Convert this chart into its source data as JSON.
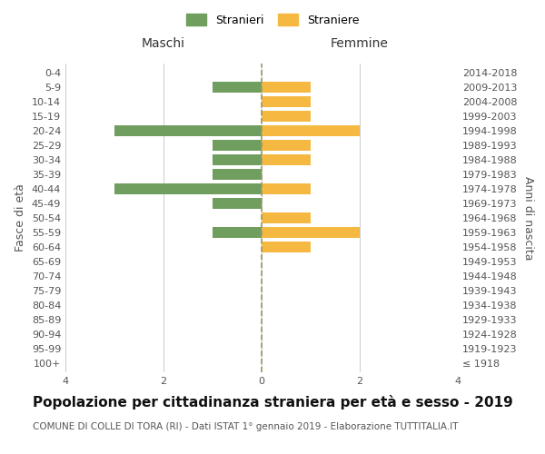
{
  "age_groups": [
    "100+",
    "95-99",
    "90-94",
    "85-89",
    "80-84",
    "75-79",
    "70-74",
    "65-69",
    "60-64",
    "55-59",
    "50-54",
    "45-49",
    "40-44",
    "35-39",
    "30-34",
    "25-29",
    "20-24",
    "15-19",
    "10-14",
    "5-9",
    "0-4"
  ],
  "birth_years": [
    "≤ 1918",
    "1919-1923",
    "1924-1928",
    "1929-1933",
    "1934-1938",
    "1939-1943",
    "1944-1948",
    "1949-1953",
    "1954-1958",
    "1959-1963",
    "1964-1968",
    "1969-1973",
    "1974-1978",
    "1979-1983",
    "1984-1988",
    "1989-1993",
    "1994-1998",
    "1999-2003",
    "2004-2008",
    "2009-2013",
    "2014-2018"
  ],
  "males": [
    0,
    0,
    0,
    0,
    0,
    0,
    0,
    0,
    0,
    -1,
    0,
    -1,
    -3,
    -1,
    -1,
    -1,
    -3,
    0,
    0,
    -1,
    0
  ],
  "females": [
    0,
    0,
    0,
    0,
    0,
    0,
    0,
    0,
    1,
    2,
    1,
    0,
    1,
    0,
    1,
    1,
    2,
    1,
    1,
    1,
    0
  ],
  "male_color": "#6f9e5e",
  "female_color": "#f5b942",
  "bar_height": 0.75,
  "xlim": [
    -4,
    4
  ],
  "xlabel_ticks": [
    -4,
    -2,
    0,
    2,
    4
  ],
  "xlabel_labels": [
    "4",
    "2",
    "0",
    "2",
    "4"
  ],
  "title": "Popolazione per cittadinanza straniera per età e sesso - 2019",
  "subtitle": "COMUNE DI COLLE DI TORA (RI) - Dati ISTAT 1° gennaio 2019 - Elaborazione TUTTITALIA.IT",
  "left_header": "Maschi",
  "right_header": "Femmine",
  "y_left_label": "Fasce di età",
  "y_right_label": "Anni di nascita",
  "legend_stranieri": "Stranieri",
  "legend_straniere": "Straniere",
  "bg_color": "#ffffff",
  "grid_color": "#cccccc",
  "center_line_color": "#999966",
  "title_fontsize": 11,
  "subtitle_fontsize": 7.5,
  "tick_fontsize": 8,
  "header_fontsize": 10,
  "legend_fontsize": 9
}
